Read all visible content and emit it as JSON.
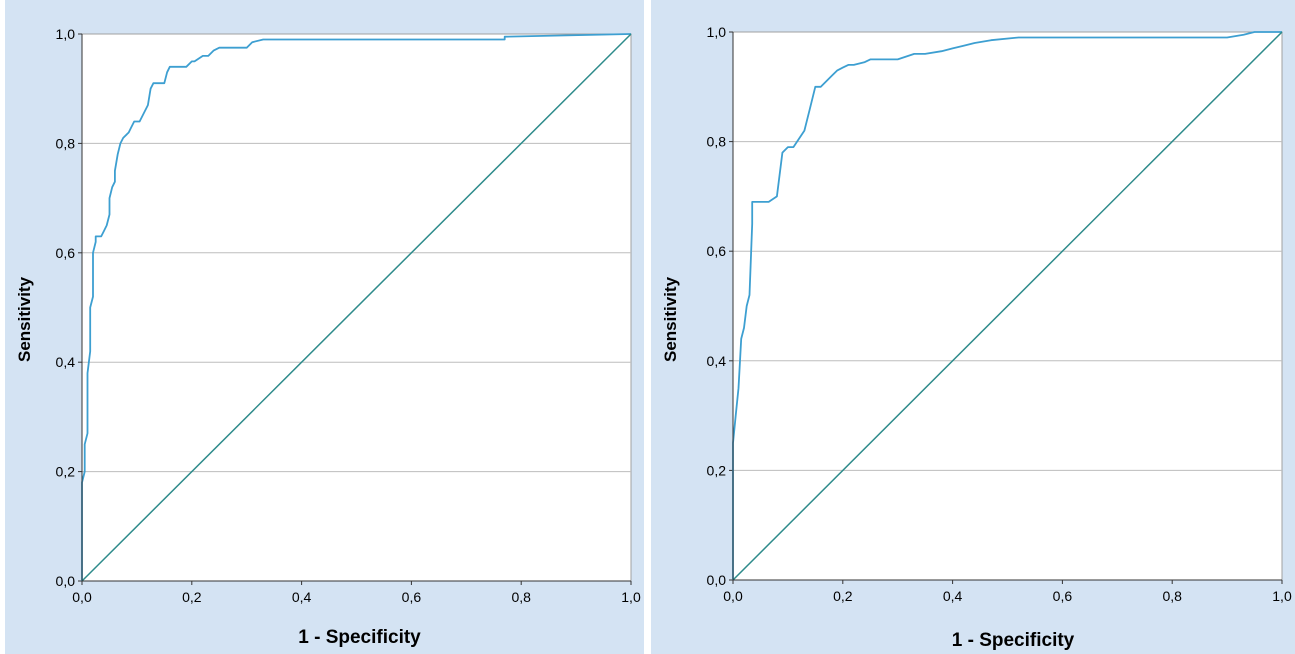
{
  "chart_data": [
    {
      "type": "line",
      "title": "",
      "xlabel": "1 - Specificity",
      "ylabel": "Sensitivity",
      "xlim": [
        0,
        1
      ],
      "ylim": [
        0,
        1
      ],
      "x_ticks": [
        "0,0",
        "0,2",
        "0,4",
        "0,6",
        "0,8",
        "1,0"
      ],
      "y_ticks": [
        "0,0",
        "0,2",
        "0,4",
        "0,6",
        "0,8",
        "1,0"
      ],
      "grid": "horizontal",
      "colors": {
        "roc": "#3d9fd1",
        "reference": "#2e8b8b",
        "grid": "#bdbdbd"
      },
      "series": [
        {
          "role": "roc",
          "x": [
            0,
            0,
            0.005,
            0.005,
            0.01,
            0.01,
            0.015,
            0.015,
            0.02,
            0.02,
            0.025,
            0.025,
            0.03,
            0.035,
            0.04,
            0.045,
            0.05,
            0.05,
            0.055,
            0.06,
            0.06,
            0.065,
            0.07,
            0.07,
            0.075,
            0.085,
            0.09,
            0.095,
            0.1,
            0.105,
            0.12,
            0.125,
            0.13,
            0.135,
            0.15,
            0.155,
            0.16,
            0.165,
            0.19,
            0.2,
            0.205,
            0.22,
            0.23,
            0.24,
            0.25,
            0.3,
            0.31,
            0.33,
            0.5,
            0.77,
            0.77,
            1.0
          ],
          "y": [
            0,
            0.18,
            0.2,
            0.25,
            0.27,
            0.38,
            0.42,
            0.5,
            0.52,
            0.6,
            0.62,
            0.63,
            0.63,
            0.63,
            0.64,
            0.65,
            0.67,
            0.7,
            0.72,
            0.73,
            0.75,
            0.78,
            0.8,
            0.8,
            0.81,
            0.82,
            0.83,
            0.84,
            0.84,
            0.84,
            0.87,
            0.9,
            0.91,
            0.91,
            0.91,
            0.93,
            0.94,
            0.94,
            0.94,
            0.95,
            0.95,
            0.96,
            0.96,
            0.97,
            0.975,
            0.975,
            0.985,
            0.99,
            0.99,
            0.99,
            0.995,
            1.0
          ]
        },
        {
          "role": "reference",
          "x": [
            0,
            1
          ],
          "y": [
            0,
            1
          ]
        }
      ]
    },
    {
      "type": "line",
      "title": "",
      "xlabel": "1 - Specificity",
      "ylabel": "Sensitivity",
      "xlim": [
        0,
        1
      ],
      "ylim": [
        0,
        1
      ],
      "x_ticks": [
        "0,0",
        "0,2",
        "0,4",
        "0,6",
        "0,8",
        "1,0"
      ],
      "y_ticks": [
        "0,0",
        "0,2",
        "0,4",
        "0,6",
        "0,8",
        "1,0"
      ],
      "grid": "horizontal",
      "colors": {
        "roc": "#3d9fd1",
        "reference": "#2e8b8b",
        "grid": "#bdbdbd"
      },
      "series": [
        {
          "role": "roc",
          "x": [
            0,
            0,
            0.005,
            0.01,
            0.015,
            0.02,
            0.025,
            0.03,
            0.035,
            0.035,
            0.04,
            0.065,
            0.08,
            0.09,
            0.1,
            0.11,
            0.13,
            0.14,
            0.15,
            0.16,
            0.17,
            0.18,
            0.19,
            0.2,
            0.21,
            0.22,
            0.24,
            0.25,
            0.28,
            0.3,
            0.33,
            0.35,
            0.38,
            0.4,
            0.42,
            0.44,
            0.47,
            0.52,
            0.7,
            0.9,
            0.93,
            0.95,
            1.0
          ],
          "y": [
            0,
            0.25,
            0.3,
            0.35,
            0.44,
            0.46,
            0.5,
            0.52,
            0.65,
            0.69,
            0.69,
            0.69,
            0.7,
            0.78,
            0.79,
            0.79,
            0.82,
            0.86,
            0.9,
            0.9,
            0.91,
            0.92,
            0.93,
            0.935,
            0.94,
            0.94,
            0.945,
            0.95,
            0.95,
            0.95,
            0.96,
            0.96,
            0.965,
            0.97,
            0.975,
            0.98,
            0.985,
            0.99,
            0.99,
            0.99,
            0.995,
            1.0,
            1.0
          ]
        },
        {
          "role": "reference",
          "x": [
            0,
            1
          ],
          "y": [
            0,
            1
          ]
        }
      ]
    }
  ]
}
